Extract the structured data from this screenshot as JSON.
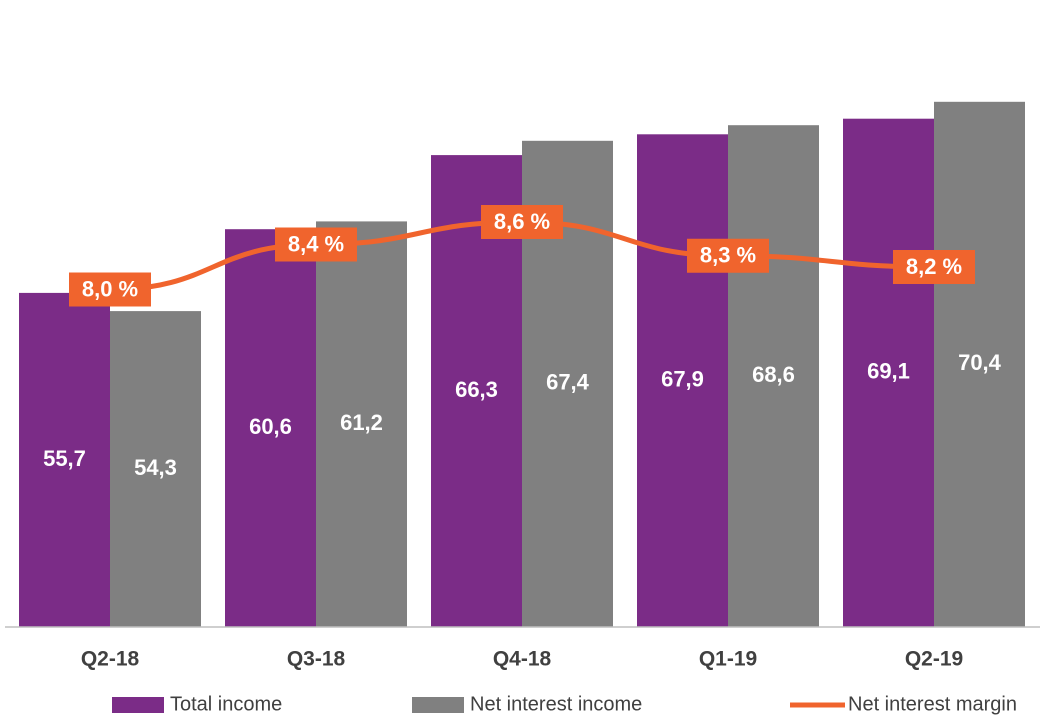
{
  "chart_data": {
    "type": "bar_line",
    "categories": [
      "Q2-18",
      "Q3-18",
      "Q4-18",
      "Q1-19",
      "Q2-19"
    ],
    "series": [
      {
        "name": "Total income",
        "color": "#7b2c87",
        "type": "bar",
        "values": [
          55.7,
          60.6,
          66.3,
          67.9,
          69.1
        ],
        "value_labels": [
          "55,7",
          "60,6",
          "66,3",
          "67,9",
          "69,1"
        ]
      },
      {
        "name": "Net interest income",
        "color": "#808080",
        "type": "bar",
        "values": [
          54.3,
          61.2,
          67.4,
          68.6,
          70.4
        ],
        "value_labels": [
          "54,3",
          "61,2",
          "67,4",
          "68,6",
          "70,4"
        ]
      },
      {
        "name": "Net interest margin",
        "color": "#f0642d",
        "type": "line",
        "axis": "y2",
        "values": [
          8.0,
          8.4,
          8.6,
          8.3,
          8.2
        ],
        "value_labels": [
          "8,0 %",
          "8,4 %",
          "8,6 %",
          "8,3 %",
          "8,2 %"
        ]
      }
    ],
    "ylim": [
      30,
      75
    ],
    "y2lim": [
      5,
      10.2
    ],
    "legend": "bottom"
  }
}
